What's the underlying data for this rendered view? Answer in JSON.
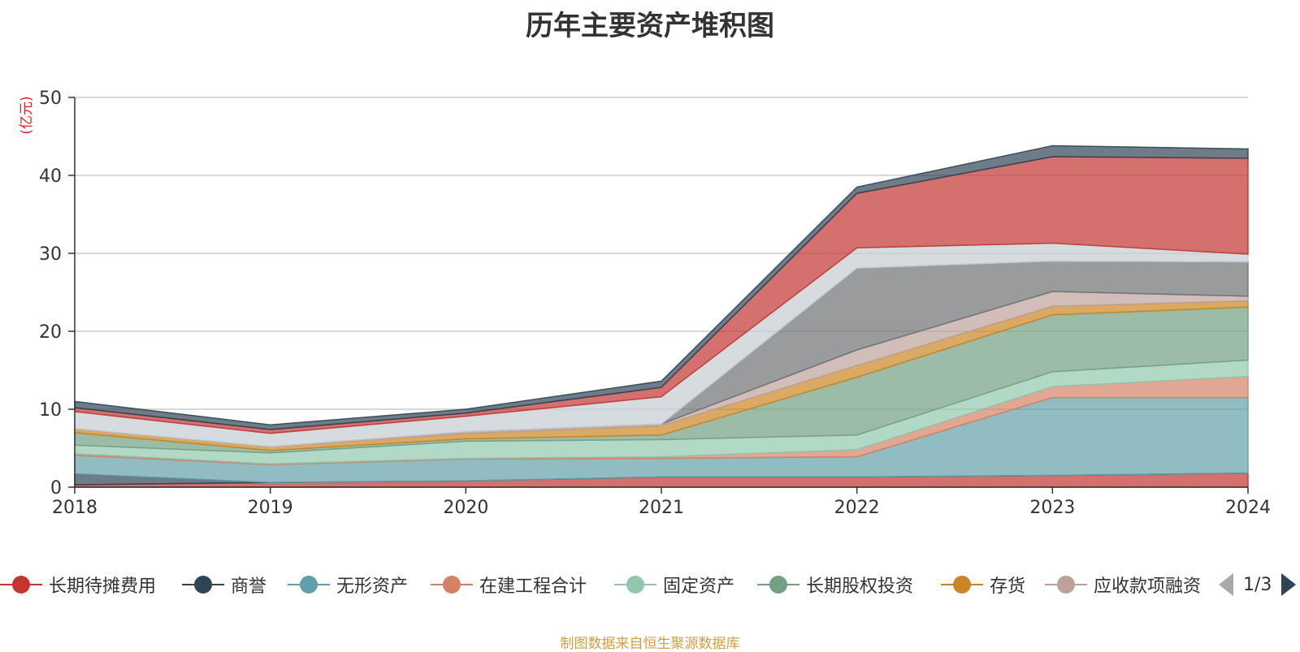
{
  "chart_data": {
    "type": "area",
    "stacked": true,
    "title": "历年主要资产堆积图",
    "ylabel": "(亿元)",
    "ylim": [
      0,
      50
    ],
    "yticks": [
      0,
      10,
      20,
      30,
      40,
      50
    ],
    "grid": true,
    "legend_position": "bottom",
    "categories": [
      "2018",
      "2019",
      "2020",
      "2021",
      "2022",
      "2023",
      "2024"
    ],
    "series": [
      {
        "name": "长期待摊费用",
        "color": "#c23531",
        "values": [
          0.3,
          0.6,
          0.8,
          1.3,
          1.3,
          1.5,
          1.8
        ]
      },
      {
        "name": "商誉",
        "color": "#2f4554",
        "values": [
          1.4,
          0,
          0,
          0,
          0,
          0,
          0
        ]
      },
      {
        "name": "无形资产",
        "color": "#61a0a8",
        "values": [
          2.4,
          2.3,
          2.8,
          2.4,
          2.6,
          10.0,
          9.7
        ]
      },
      {
        "name": "在建工程合计",
        "color": "#d48265",
        "values": [
          0.2,
          0.1,
          0.1,
          0.2,
          0.9,
          1.4,
          2.7
        ]
      },
      {
        "name": "固定资产",
        "color": "#91c7ae",
        "values": [
          1.1,
          1.4,
          2.2,
          2.2,
          1.9,
          1.9,
          2.1
        ]
      },
      {
        "name": "长期股权投资",
        "color": "#749f83",
        "values": [
          1.6,
          0.3,
          0.3,
          0.6,
          7.4,
          7.3,
          6.8
        ]
      },
      {
        "name": "存货",
        "color": "#ca8622",
        "values": [
          0.5,
          0.5,
          0.7,
          1.2,
          1.5,
          1.1,
          0.8
        ]
      },
      {
        "name": "应收款项融资",
        "color": "#bda29a",
        "values": [
          0,
          0,
          0.2,
          0.2,
          2.0,
          1.9,
          0.6
        ]
      },
      {
        "name": "",
        "color": "#6e7074",
        "values": [
          0,
          0,
          0,
          0,
          10.5,
          3.9,
          4.4
        ]
      },
      {
        "name": "",
        "color": "#c4ccd3",
        "values": [
          2.2,
          1.7,
          2.0,
          3.5,
          2.6,
          2.3,
          1.0
        ]
      },
      {
        "name": "",
        "color": "#c23531",
        "values": [
          0.5,
          0.5,
          0.4,
          1.2,
          7.0,
          11.1,
          12.3
        ]
      },
      {
        "name": "",
        "color": "#2f4554",
        "values": [
          0.8,
          0.6,
          0.5,
          0.8,
          0.8,
          1.4,
          1.2
        ]
      }
    ]
  },
  "legend": {
    "page_label": "1/3",
    "items": [
      {
        "label": "长期待摊费用",
        "color": "#c23531"
      },
      {
        "label": "商誉",
        "color": "#2f4554"
      },
      {
        "label": "无形资产",
        "color": "#61a0a8"
      },
      {
        "label": "在建工程合计",
        "color": "#d48265"
      },
      {
        "label": "固定资产",
        "color": "#91c7ae"
      },
      {
        "label": "长期股权投资",
        "color": "#749f83"
      },
      {
        "label": "存货",
        "color": "#ca8622"
      },
      {
        "label": "应收款项融资",
        "color": "#bda29a"
      }
    ]
  },
  "footer": {
    "source": "制图数据来自恒生聚源数据库"
  }
}
